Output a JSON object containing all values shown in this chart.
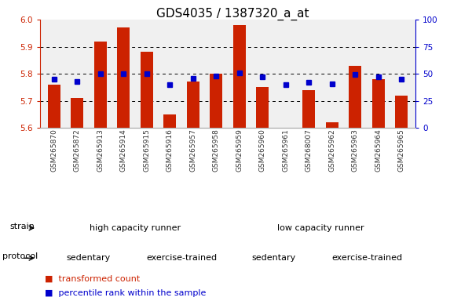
{
  "title": "GDS4035 / 1387320_a_at",
  "samples": [
    "GSM265870",
    "GSM265872",
    "GSM265913",
    "GSM265914",
    "GSM265915",
    "GSM265916",
    "GSM265957",
    "GSM265958",
    "GSM265959",
    "GSM265960",
    "GSM265961",
    "GSM268007",
    "GSM265962",
    "GSM265963",
    "GSM265964",
    "GSM265965"
  ],
  "bar_values": [
    5.76,
    5.71,
    5.92,
    5.97,
    5.88,
    5.65,
    5.77,
    5.8,
    5.98,
    5.75,
    5.6,
    5.74,
    5.62,
    5.83,
    5.78,
    5.72
  ],
  "dot_values": [
    45,
    43,
    50,
    50,
    50,
    40,
    46,
    48,
    51,
    47,
    40,
    42,
    41,
    49,
    47,
    45
  ],
  "ylim_left": [
    5.6,
    6.0
  ],
  "ylim_right": [
    0,
    100
  ],
  "yticks_left": [
    5.6,
    5.7,
    5.8,
    5.9,
    6.0
  ],
  "yticks_right": [
    0,
    25,
    50,
    75,
    100
  ],
  "bar_color": "#cc2200",
  "dot_color": "#0000cc",
  "bg_color": "#ffffff",
  "strain_groups": [
    {
      "label": "high capacity runner",
      "start": 0,
      "end": 8,
      "color": "#88ee88"
    },
    {
      "label": "low capacity runner",
      "start": 8,
      "end": 16,
      "color": "#44cc44"
    }
  ],
  "protocol_groups": [
    {
      "label": "sedentary",
      "start": 0,
      "end": 4,
      "color": "#ee88ee"
    },
    {
      "label": "exercise-trained",
      "start": 4,
      "end": 8,
      "color": "#cc44cc"
    },
    {
      "label": "sedentary",
      "start": 8,
      "end": 12,
      "color": "#ee88ee"
    },
    {
      "label": "exercise-trained",
      "start": 12,
      "end": 16,
      "color": "#cc44cc"
    }
  ],
  "tick_color_left": "#cc2200",
  "tick_color_right": "#0000cc",
  "title_fontsize": 11,
  "tick_fontsize": 7.5,
  "band_fontsize": 8,
  "legend_fontsize": 8,
  "label_fontsize": 8
}
